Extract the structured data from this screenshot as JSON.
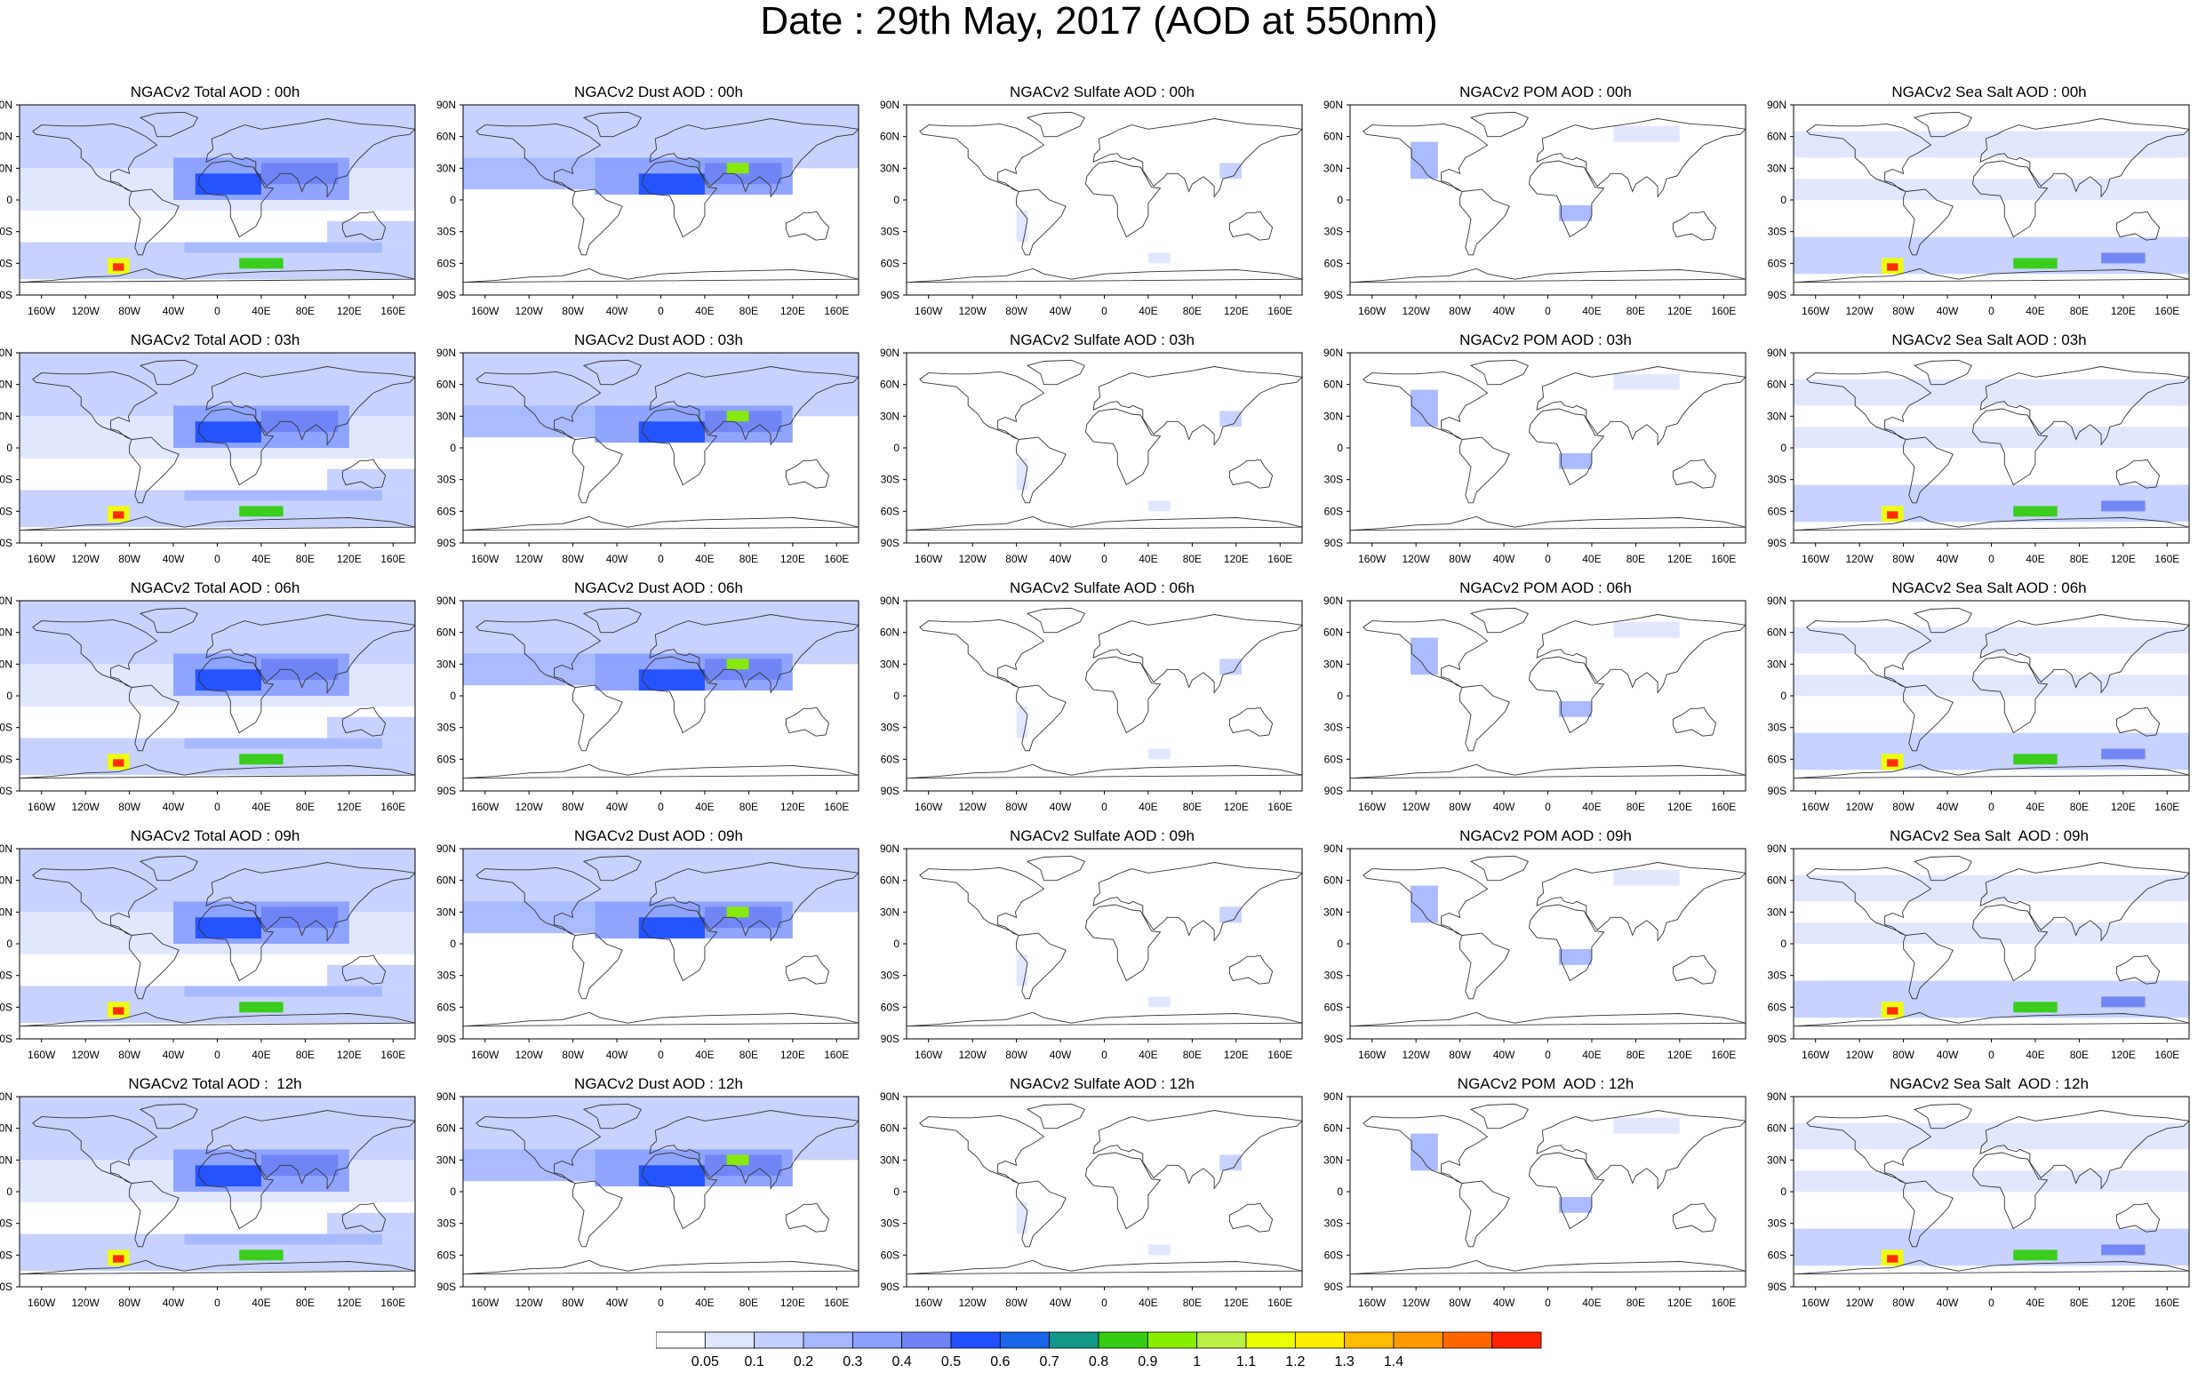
{
  "title": "Date : 29th May, 2017 (AOD at 550nm)",
  "lat_ticks": [
    "90N",
    "60N",
    "30N",
    "0",
    "30S",
    "60S",
    "90S"
  ],
  "lon_ticks": [
    "160W",
    "120W",
    "80W",
    "40W",
    "0",
    "40E",
    "80E",
    "120E",
    "160E"
  ],
  "panels": [
    [
      "NGACv2 Total AOD : 00h",
      "NGACv2 Dust AOD : 00h",
      "NGACv2 Sulfate AOD : 00h",
      "NGACv2 POM AOD : 00h",
      "NGACv2 Sea Salt AOD : 00h"
    ],
    [
      "NGACv2 Total AOD : 03h",
      "NGACv2 Dust AOD : 03h",
      "NGACv2 Sulfate AOD : 03h",
      "NGACv2 POM AOD : 03h",
      "NGACv2 Sea Salt AOD : 03h"
    ],
    [
      "NGACv2 Total AOD : 06h",
      "NGACv2 Dust AOD : 06h",
      "NGACv2 Sulfate AOD : 06h",
      "NGACv2 POM AOD : 06h",
      "NGACv2 Sea Salt AOD : 06h"
    ],
    [
      "NGACv2 Total AOD : 09h",
      "NGACv2 Dust AOD : 09h",
      "NGACv2 Sulfate AOD : 09h",
      "NGACv2 POM AOD : 09h",
      "NGACv2 Sea Salt  AOD : 09h"
    ],
    [
      "NGACv2 Total AOD :  12h",
      "NGACv2 Dust AOD : 12h",
      "NGACv2 Sulfate AOD : 12h",
      "NGACv2 POM  AOD : 12h",
      "NGACv2 Sea Salt  AOD : 12h"
    ]
  ],
  "colorbar": {
    "colors": [
      "#ffffff",
      "#dfe6ff",
      "#c4d0ff",
      "#a5b8ff",
      "#8aa0ff",
      "#6f84f4",
      "#1f4fff",
      "#1a66e8",
      "#12988a",
      "#33cc11",
      "#88ee00",
      "#bbf044",
      "#eeff00",
      "#ffee00",
      "#ffbb00",
      "#ff9900",
      "#ff6600",
      "#ff2200"
    ],
    "labels": [
      "0.05",
      "0.1",
      "0.2",
      "0.3",
      "0.4",
      "0.5",
      "0.6",
      "0.7",
      "0.8",
      "0.9",
      "1",
      "1.1",
      "1.2",
      "1.3",
      "1.4"
    ]
  }
}
